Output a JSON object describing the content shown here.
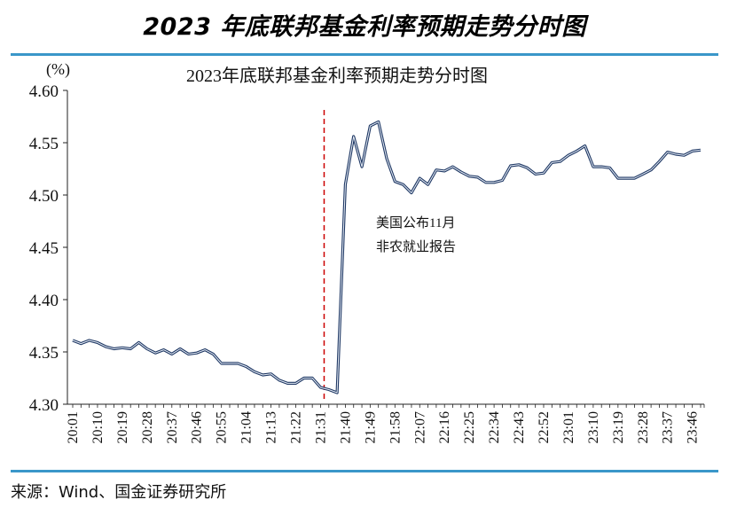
{
  "header_title": "2023 年底联邦基金利率预期走势分时图",
  "source_text": "来源：Wind、国金证券研究所",
  "chart_data": {
    "type": "line",
    "title": "2023年底联邦基金利率预期走势分时图",
    "ylabel": "(%)",
    "ylim": [
      4.3,
      4.6
    ],
    "yticks": [
      "4.30",
      "4.35",
      "4.40",
      "4.45",
      "4.50",
      "4.55",
      "4.60"
    ],
    "x_ticks": [
      "20:01",
      "20:10",
      "20:19",
      "20:28",
      "20:37",
      "20:46",
      "20:55",
      "21:04",
      "21:13",
      "21:22",
      "21:31",
      "21:40",
      "21:49",
      "21:58",
      "22:07",
      "22:16",
      "22:25",
      "22:34",
      "22:43",
      "22:52",
      "23:01",
      "23:10",
      "23:19",
      "23:28",
      "23:37",
      "23:46"
    ],
    "grid": false,
    "line_color": "#1f3864",
    "event_line_color": "#cc0000",
    "event_tick": "21:31",
    "annotation": [
      "美国公布11月",
      "非农就业报告"
    ],
    "series": [
      {
        "values": [
          4.361,
          4.358,
          4.361,
          4.359,
          4.355,
          4.353,
          4.354,
          4.353,
          4.359,
          4.353,
          4.349,
          4.352,
          4.348,
          4.353,
          4.348,
          4.349,
          4.352,
          4.348,
          4.339,
          4.339,
          4.339,
          4.336,
          4.331,
          4.328,
          4.329,
          4.323,
          4.32,
          4.32,
          4.325,
          4.325,
          4.316,
          4.314,
          4.311,
          4.51,
          4.556,
          4.527,
          4.566,
          4.57,
          4.535,
          4.513,
          4.51,
          4.502,
          4.516,
          4.51,
          4.524,
          4.523,
          4.527,
          4.522,
          4.518,
          4.517,
          4.512,
          4.512,
          4.514,
          4.528,
          4.529,
          4.526,
          4.52,
          4.521,
          4.531,
          4.532,
          4.538,
          4.542,
          4.547,
          4.527,
          4.527,
          4.526,
          4.516,
          4.516,
          4.516,
          4.52,
          4.524,
          4.532,
          4.541,
          4.539,
          4.538,
          4.542,
          4.543
        ]
      }
    ]
  }
}
